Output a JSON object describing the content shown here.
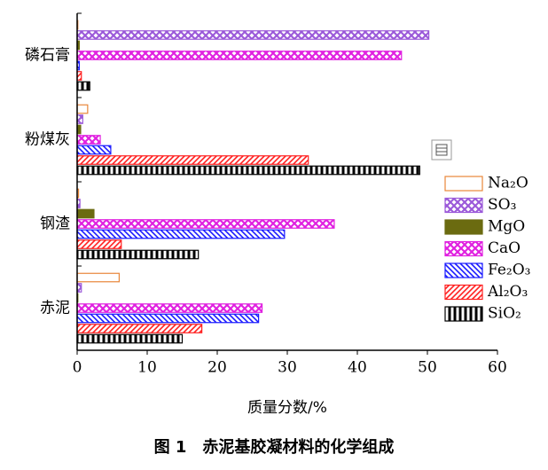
{
  "chart_data": {
    "type": "hbar",
    "title": "图 1　赤泥基胶凝材料的化学组成",
    "x_label": "质量分数/%",
    "categories": [
      "磷石膏",
      "粉煤灰",
      "钢渣",
      "赤泥"
    ],
    "series": [
      {
        "name": "Na₂O",
        "color": "#e8873a",
        "hatch": "outline",
        "values": [
          0.1,
          1.5,
          0.2,
          6
        ]
      },
      {
        "name": "SO₃",
        "color": "#9b59d9",
        "hatch": "cross",
        "values": [
          50.2,
          0.8,
          0.4,
          0.6
        ]
      },
      {
        "name": "MgO",
        "color": "#6b6b10",
        "hatch": "solid",
        "values": [
          0.3,
          0.5,
          2.4,
          0.1
        ]
      },
      {
        "name": "CaO",
        "color": "#e020e0",
        "hatch": "cross",
        "values": [
          46.3,
          3.3,
          36.7,
          26.4
        ]
      },
      {
        "name": "Fe₂O₃",
        "color": "#1a1aff",
        "hatch": "back",
        "values": [
          0.3,
          4.8,
          29.6,
          25.9
        ]
      },
      {
        "name": "Al₂O₃",
        "color": "#ff2020",
        "hatch": "forward",
        "values": [
          0.6,
          33,
          6.3,
          17.8
        ]
      },
      {
        "name": "SiO₂",
        "color": "#000000",
        "hatch": "vertical",
        "values": [
          1.8,
          48.9,
          17.3,
          15
        ]
      }
    ],
    "xlim": [
      0,
      60
    ],
    "xticks": [
      0,
      10,
      20,
      30,
      40,
      50,
      60
    ]
  }
}
